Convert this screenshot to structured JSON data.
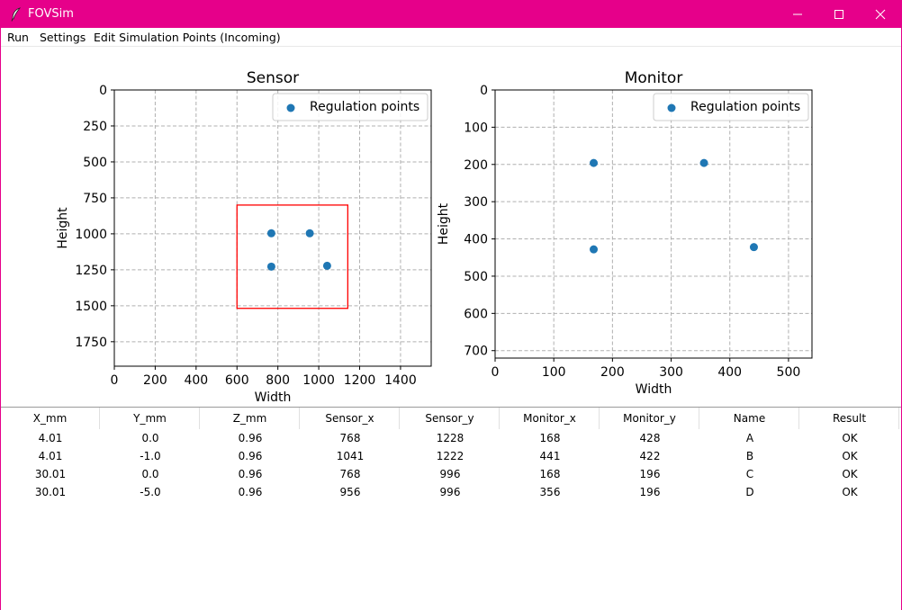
{
  "window": {
    "title": "FOVSim",
    "controls": [
      "minimize",
      "maximize",
      "close"
    ],
    "accent_color": "#e6008a"
  },
  "menu": {
    "items": [
      "Run",
      "Settings",
      "Edit Simulation Points (Incoming)"
    ]
  },
  "chart_data": [
    {
      "type": "scatter",
      "title": "Sensor",
      "xlabel": "Width",
      "ylabel": "Height",
      "xlim": [
        0,
        1550
      ],
      "ylim": [
        1920,
        0
      ],
      "y_inverted": true,
      "grid": true,
      "xticks": [
        0,
        200,
        400,
        600,
        800,
        1000,
        1200,
        1400
      ],
      "yticks": [
        0,
        250,
        500,
        750,
        1000,
        1250,
        1500,
        1750
      ],
      "legend": {
        "position": "top-right",
        "entries": [
          "Regulation points"
        ]
      },
      "series": [
        {
          "name": "Regulation points",
          "color": "#1f77b4",
          "x": [
            768,
            1041,
            768,
            956
          ],
          "y": [
            1228,
            1222,
            996,
            996
          ]
        }
      ],
      "rectangle": {
        "color": "#ff0000",
        "x0": 600,
        "y0": 800,
        "x1": 1142,
        "y1": 1518
      }
    },
    {
      "type": "scatter",
      "title": "Monitor",
      "xlabel": "Width",
      "ylabel": "Height",
      "xlim": [
        0,
        540
      ],
      "ylim": [
        720,
        0
      ],
      "y_inverted": true,
      "grid": true,
      "xticks": [
        0,
        100,
        200,
        300,
        400,
        500
      ],
      "yticks": [
        0,
        100,
        200,
        300,
        400,
        500,
        600,
        700
      ],
      "legend": {
        "position": "top-right",
        "entries": [
          "Regulation points"
        ]
      },
      "series": [
        {
          "name": "Regulation points",
          "color": "#1f77b4",
          "x": [
            168,
            441,
            168,
            356
          ],
          "y": [
            428,
            422,
            196,
            196
          ]
        }
      ]
    }
  ],
  "table": {
    "columns": [
      "X_mm",
      "Y_mm",
      "Z_mm",
      "Sensor_x",
      "Sensor_y",
      "Monitor_x",
      "Monitor_y",
      "Name",
      "Result"
    ],
    "rows": [
      [
        "4.01",
        "0.0",
        "0.96",
        "768",
        "1228",
        "168",
        "428",
        "A",
        "OK"
      ],
      [
        "4.01",
        "-1.0",
        "0.96",
        "1041",
        "1222",
        "441",
        "422",
        "B",
        "OK"
      ],
      [
        "30.01",
        "0.0",
        "0.96",
        "768",
        "996",
        "168",
        "196",
        "C",
        "OK"
      ],
      [
        "30.01",
        "-5.0",
        "0.96",
        "956",
        "996",
        "356",
        "196",
        "D",
        "OK"
      ]
    ]
  }
}
